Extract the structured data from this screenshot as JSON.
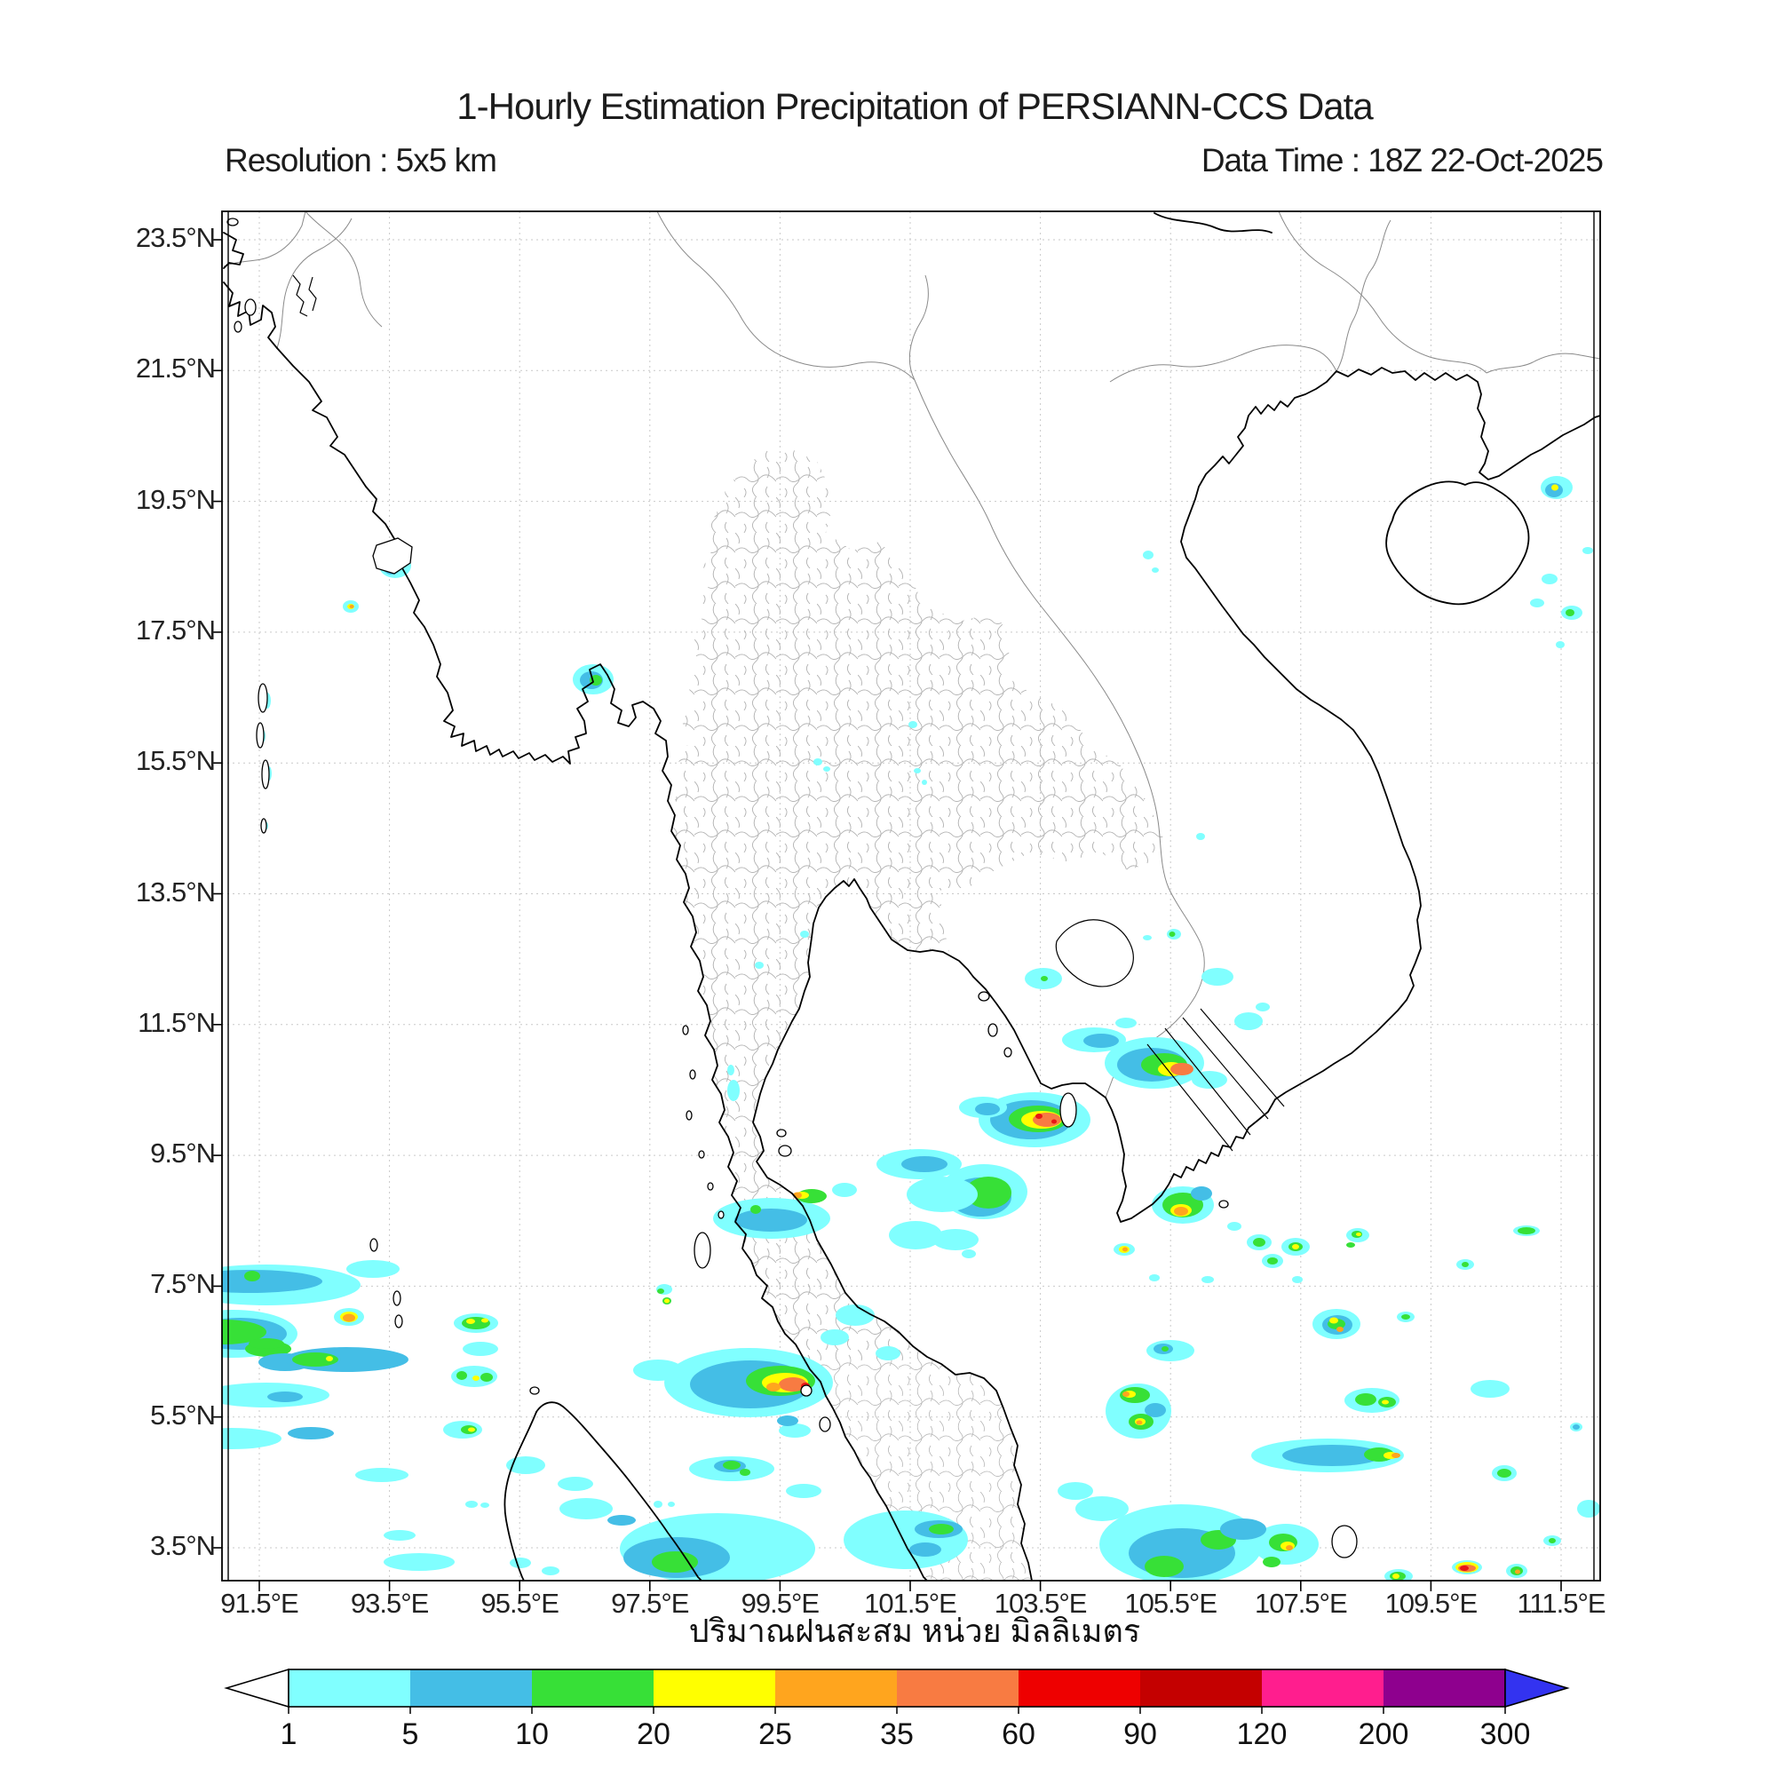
{
  "header": {
    "title": "1-Hourly Estimation Precipitation of PERSIANN-CCS Data",
    "resolution_label": "Resolution : 5x5 km",
    "datatime_label": "Data Time : 18Z 22-Oct-2025"
  },
  "axes": {
    "lat_ticks": [
      "23.5°N",
      "21.5°N",
      "19.5°N",
      "17.5°N",
      "15.5°N",
      "13.5°N",
      "11.5°N",
      "9.5°N",
      "7.5°N",
      "5.5°N",
      "3.5°N"
    ],
    "lon_ticks": [
      "91.5°E",
      "93.5°E",
      "95.5°E",
      "97.5°E",
      "99.5°E",
      "101.5°E",
      "103.5°E",
      "105.5°E",
      "107.5°E",
      "109.5°E",
      "111.5°E"
    ]
  },
  "caption": {
    "xlabel_thai": "ปริมาณฝนสะสม หน่วย มิลลิเมตร"
  },
  "colorbar": {
    "tick_values": [
      "1",
      "5",
      "10",
      "20",
      "25",
      "35",
      "60",
      "90",
      "120",
      "200",
      "300"
    ],
    "segment_colors": [
      "#80FFFF",
      "#44BEE6",
      "#37E037",
      "#FFFF00",
      "#FFA51E",
      "#F87B42",
      "#EE0000",
      "#C40000",
      "#FF1E8E",
      "#8E008E"
    ],
    "underflow_color": "#FFFFFF",
    "overflow_color": "#3333F0"
  },
  "legend_meaning": {
    "units": "mm",
    "levels_mm": [
      1,
      5,
      10,
      20,
      25,
      35,
      60,
      90,
      120,
      200,
      300
    ]
  }
}
